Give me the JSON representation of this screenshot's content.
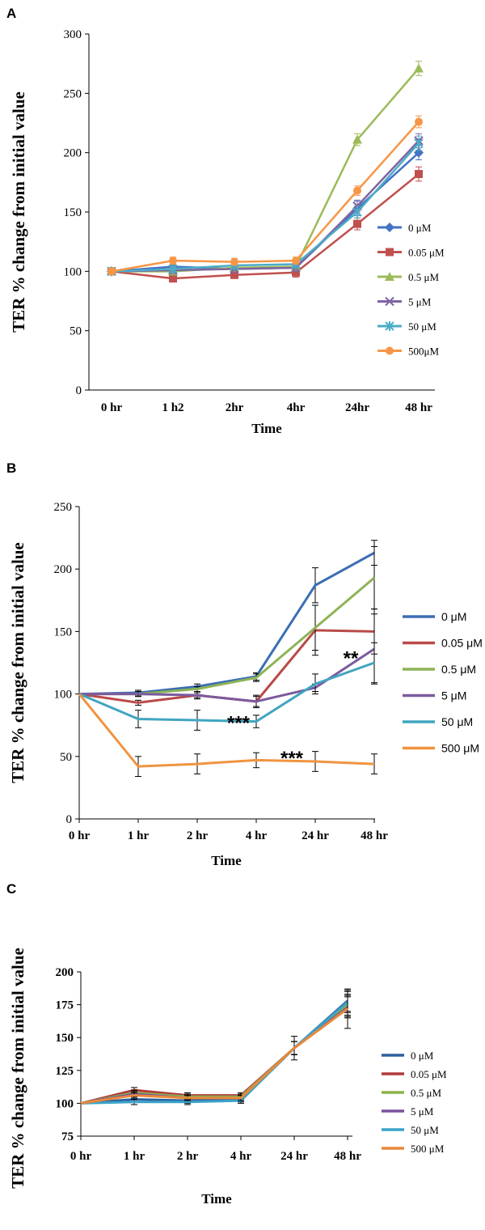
{
  "chart_data": [
    {
      "panel": "A",
      "type": "line",
      "title": "",
      "xlabel": "Time",
      "ylabel": "TER % change from initial value",
      "categories": [
        "0 hr",
        "1 h2",
        "2hr",
        "4hr",
        "24hr",
        "48 hr"
      ],
      "ylim": [
        0,
        300
      ],
      "yticks": [
        0,
        50,
        100,
        150,
        200,
        250,
        300
      ],
      "series": [
        {
          "name": "0 μM",
          "color": "#4472C4",
          "marker": "diamond",
          "values": [
            100,
            104,
            102,
            103,
            153,
            200
          ],
          "errors": [
            3,
            3,
            3,
            3,
            6,
            6
          ]
        },
        {
          "name": "0.05 μM",
          "color": "#C0504D",
          "marker": "square",
          "values": [
            100,
            94,
            97,
            99,
            140,
            182
          ],
          "errors": [
            3,
            3,
            3,
            4,
            5,
            6
          ]
        },
        {
          "name": "0.5 μM",
          "color": "#9BBB59",
          "marker": "triangle",
          "values": [
            100,
            100,
            103,
            104,
            211,
            271
          ],
          "errors": [
            3,
            3,
            3,
            3,
            5,
            6
          ]
        },
        {
          "name": "5 μM",
          "color": "#8064A2",
          "marker": "x",
          "values": [
            100,
            101,
            102,
            103,
            155,
            210
          ],
          "errors": [
            3,
            3,
            3,
            3,
            5,
            6
          ]
        },
        {
          "name": "50 μM",
          "color": "#4BACC6",
          "marker": "star",
          "values": [
            100,
            102,
            105,
            106,
            150,
            208
          ],
          "errors": [
            3,
            3,
            3,
            3,
            5,
            6
          ]
        },
        {
          "name": "500μM",
          "color": "#F79646",
          "marker": "circle",
          "values": [
            100,
            109,
            108,
            109,
            168,
            226
          ],
          "errors": [
            3,
            3,
            3,
            3,
            4,
            5
          ]
        }
      ]
    },
    {
      "panel": "B",
      "type": "line",
      "title": "",
      "xlabel": "Time",
      "ylabel": "TER % change from initial value",
      "categories": [
        "0 hr",
        "1 hr",
        "2 hr",
        "4 hr",
        "24 hr",
        "48 hr"
      ],
      "ylim": [
        0,
        250
      ],
      "yticks": [
        0,
        50,
        100,
        150,
        200,
        250
      ],
      "annotations": [
        {
          "text": "***",
          "x_index": 3,
          "y": 78,
          "position": "left"
        },
        {
          "text": "**",
          "x_index": 4,
          "y": 130,
          "position": "right"
        },
        {
          "text": "***",
          "x_index": 3,
          "y": 50,
          "position": "right"
        }
      ],
      "series": [
        {
          "name": "0 μM",
          "color": "#3C6EB4",
          "values": [
            100,
            101,
            106,
            114,
            187,
            213
          ],
          "errors": [
            0,
            2,
            2,
            3,
            14,
            10
          ]
        },
        {
          "name": "0.05 μM",
          "color": "#B94A48",
          "values": [
            100,
            93,
            99,
            94,
            151,
            150
          ],
          "errors": [
            0,
            2,
            3,
            5,
            20,
            18
          ]
        },
        {
          "name": "0.5 μM",
          "color": "#8DB356",
          "values": [
            100,
            100,
            104,
            113,
            153,
            193
          ],
          "errors": [
            0,
            2,
            2,
            3,
            18,
            25
          ]
        },
        {
          "name": "5 μM",
          "color": "#7B5A9E",
          "values": [
            100,
            100,
            99,
            94,
            105,
            136
          ],
          "errors": [
            0,
            2,
            2,
            4,
            3,
            28
          ]
        },
        {
          "name": "50 μM",
          "color": "#41A5C0",
          "values": [
            100,
            80,
            79,
            78,
            108,
            125
          ],
          "errors": [
            0,
            7,
            8,
            5,
            8,
            16
          ]
        },
        {
          "name": "500 μM",
          "color": "#F0943F",
          "values": [
            100,
            42,
            44,
            47,
            46,
            44
          ],
          "errors": [
            0,
            8,
            8,
            6,
            8,
            8
          ]
        }
      ]
    },
    {
      "panel": "C",
      "type": "line",
      "title": "",
      "xlabel": "Time",
      "ylabel": "TER % change from initial value",
      "categories": [
        "0 hr",
        "1 hr",
        "2 hr",
        "4 hr",
        "24 hr",
        "48 hr"
      ],
      "ylim": [
        75,
        200
      ],
      "yticks": [
        75,
        100,
        125,
        150,
        175,
        200
      ],
      "series": [
        {
          "name": "0 μM",
          "color": "#2E5F9E",
          "values": [
            100,
            103,
            102,
            103,
            142,
            178
          ],
          "errors": [
            0,
            2,
            2,
            2,
            5,
            8
          ]
        },
        {
          "name": "0.05 μM",
          "color": "#B03A3A",
          "values": [
            100,
            110,
            106,
            106,
            142,
            174
          ],
          "errors": [
            0,
            2,
            2,
            2,
            5,
            8
          ]
        },
        {
          "name": "0.5 μM",
          "color": "#8AB34A",
          "values": [
            100,
            108,
            105,
            105,
            142,
            175
          ],
          "errors": [
            0,
            2,
            2,
            2,
            5,
            8
          ]
        },
        {
          "name": "5 μM",
          "color": "#7A52A0",
          "values": [
            100,
            107,
            104,
            104,
            142,
            173
          ],
          "errors": [
            0,
            2,
            2,
            2,
            5,
            8
          ]
        },
        {
          "name": "50 μM",
          "color": "#3AA3C8",
          "values": [
            100,
            101,
            101,
            102,
            142,
            177
          ],
          "errors": [
            0,
            2,
            2,
            2,
            5,
            8
          ]
        },
        {
          "name": "500 μM",
          "color": "#E8893A",
          "values": [
            100,
            106,
            104,
            104,
            142,
            172
          ],
          "errors": [
            0,
            2,
            2,
            2,
            9,
            15
          ]
        }
      ]
    }
  ]
}
